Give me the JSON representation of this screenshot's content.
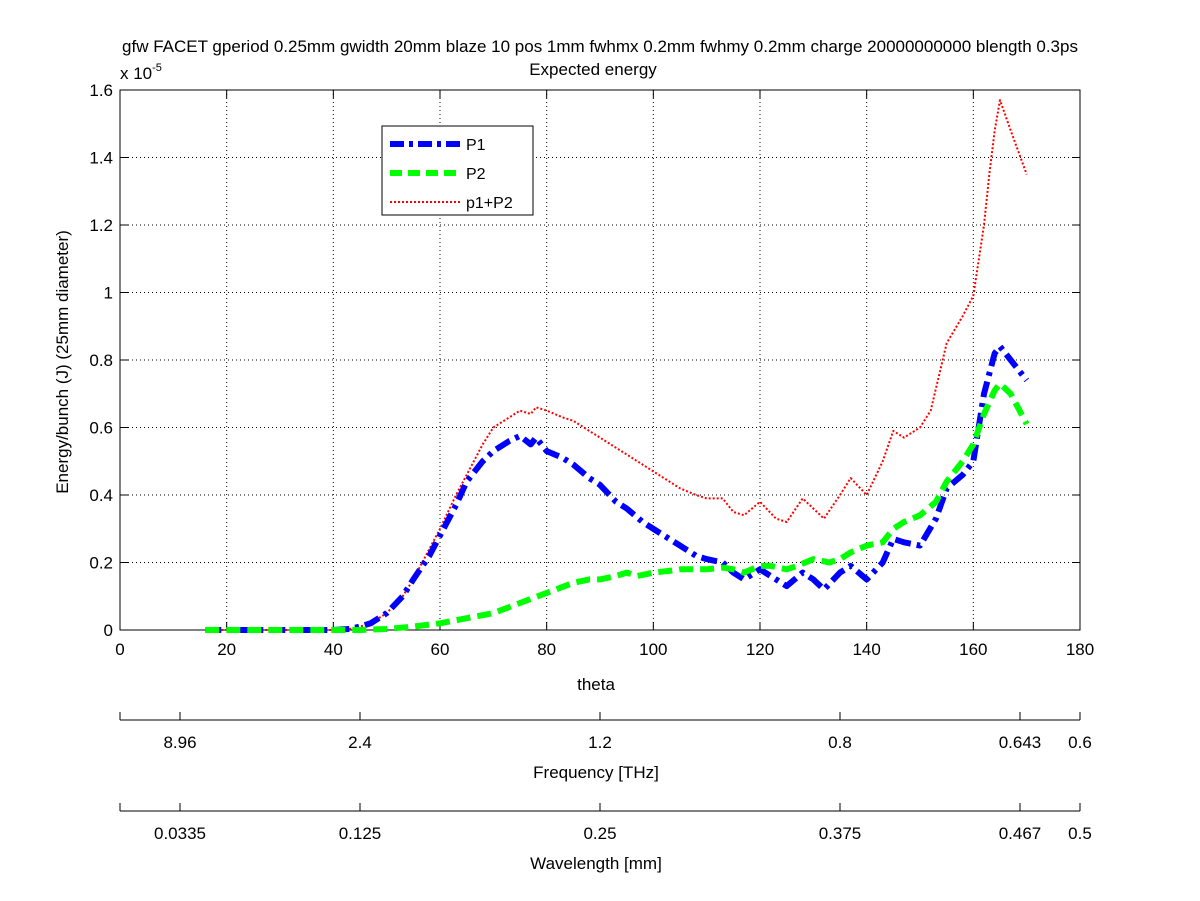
{
  "chart_data": {
    "type": "line",
    "title": "gfw FACET gperiod 0.25mm gwidth 20mm blaze 10 pos 1mm fwhmx 0.2mm fwhmy 0.2mm charge 20000000000 blength 0.3ps",
    "subtitle": "Expected energy",
    "xlabel": "theta",
    "ylabel": "Energy/bunch (J) (25mm diameter)",
    "y_multiplier_base": "x 10",
    "y_multiplier_exp": "-5",
    "xlim": [
      0,
      180
    ],
    "ylim": [
      0,
      1.6
    ],
    "x_ticks": [
      0,
      20,
      40,
      60,
      80,
      100,
      120,
      140,
      160,
      180
    ],
    "x_tick_labels": [
      "0",
      "20",
      "40",
      "60",
      "80",
      "100",
      "120",
      "140",
      "160",
      "180"
    ],
    "y_ticks": [
      0,
      0.2,
      0.4,
      0.6,
      0.8,
      1.0,
      1.2,
      1.4,
      1.6
    ],
    "y_tick_labels": [
      "0",
      "0.2",
      "0.4",
      "0.6",
      "0.8",
      "1",
      "1.2",
      "1.4",
      "1.6"
    ],
    "grid": true,
    "legend_position": "top-left",
    "secondary_axes": [
      {
        "label": "Frequency [THz]",
        "tick_positions": [
          0,
          11.25,
          45,
          90,
          135,
          168.75,
          180
        ],
        "tick_labels": [
          "",
          "8.96",
          "2.4",
          "1.2",
          "0.8",
          "0.643",
          "0.6"
        ]
      },
      {
        "label": "Wavelength [mm]",
        "tick_positions": [
          0,
          11.25,
          45,
          90,
          135,
          168.75,
          180
        ],
        "tick_labels": [
          "",
          "0.0335",
          "0.125",
          "0.25",
          "0.375",
          "0.467",
          "0.5"
        ]
      }
    ],
    "series": [
      {
        "name": "P1",
        "color": "#0000ff",
        "style": "dashdot",
        "x": [
          16,
          20,
          25,
          30,
          35,
          40,
          43,
          45,
          47,
          50,
          53,
          55,
          58,
          60,
          63,
          65,
          68,
          70,
          73,
          75,
          77,
          78,
          80,
          83,
          85,
          88,
          90,
          93,
          95,
          98,
          100,
          103,
          105,
          108,
          110,
          113,
          115,
          117,
          120,
          123,
          125,
          128,
          130,
          132,
          135,
          137,
          140,
          143,
          145,
          147,
          150,
          153,
          155,
          158,
          160,
          162,
          164,
          165,
          167,
          170
        ],
        "y": [
          0,
          0,
          0,
          0,
          0,
          0,
          0.003,
          0.01,
          0.02,
          0.05,
          0.1,
          0.15,
          0.22,
          0.28,
          0.37,
          0.44,
          0.5,
          0.53,
          0.56,
          0.575,
          0.55,
          0.57,
          0.53,
          0.51,
          0.49,
          0.45,
          0.43,
          0.38,
          0.36,
          0.32,
          0.3,
          0.27,
          0.25,
          0.22,
          0.21,
          0.2,
          0.17,
          0.15,
          0.18,
          0.15,
          0.13,
          0.17,
          0.15,
          0.12,
          0.17,
          0.19,
          0.15,
          0.2,
          0.27,
          0.26,
          0.25,
          0.33,
          0.42,
          0.46,
          0.5,
          0.7,
          0.82,
          0.84,
          0.8,
          0.74
        ]
      },
      {
        "name": "P2",
        "color": "#00ff00",
        "style": "dashed",
        "x": [
          16,
          20,
          30,
          40,
          45,
          50,
          55,
          60,
          65,
          70,
          75,
          80,
          85,
          88,
          90,
          93,
          95,
          97,
          100,
          103,
          105,
          108,
          110,
          113,
          115,
          117,
          120,
          122,
          125,
          127,
          130,
          133,
          135,
          137,
          140,
          143,
          145,
          147,
          150,
          153,
          155,
          158,
          160,
          162,
          164,
          165,
          167,
          170
        ],
        "y": [
          0,
          0,
          0,
          0,
          0,
          0.003,
          0.01,
          0.02,
          0.035,
          0.05,
          0.08,
          0.11,
          0.14,
          0.15,
          0.15,
          0.16,
          0.17,
          0.16,
          0.17,
          0.175,
          0.18,
          0.18,
          0.18,
          0.185,
          0.18,
          0.17,
          0.19,
          0.19,
          0.18,
          0.19,
          0.21,
          0.2,
          0.21,
          0.23,
          0.25,
          0.26,
          0.3,
          0.32,
          0.34,
          0.38,
          0.44,
          0.5,
          0.55,
          0.64,
          0.71,
          0.73,
          0.7,
          0.61
        ]
      },
      {
        "name": "p1+P2",
        "color": "#ff0000",
        "style": "dotted",
        "x": [
          16,
          20,
          30,
          40,
          43,
          45,
          47,
          50,
          53,
          55,
          58,
          60,
          63,
          65,
          68,
          70,
          73,
          75,
          77,
          78,
          80,
          83,
          85,
          88,
          90,
          93,
          95,
          98,
          100,
          103,
          105,
          108,
          110,
          113,
          115,
          117,
          120,
          123,
          125,
          128,
          130,
          132,
          135,
          137,
          140,
          143,
          145,
          147,
          150,
          152,
          155,
          158,
          160,
          162,
          163,
          164,
          165,
          167,
          170
        ],
        "y": [
          0,
          0,
          0,
          0,
          0.003,
          0.01,
          0.02,
          0.05,
          0.1,
          0.15,
          0.24,
          0.3,
          0.4,
          0.46,
          0.55,
          0.6,
          0.63,
          0.65,
          0.64,
          0.66,
          0.65,
          0.63,
          0.62,
          0.59,
          0.57,
          0.54,
          0.52,
          0.49,
          0.47,
          0.44,
          0.42,
          0.4,
          0.39,
          0.39,
          0.35,
          0.34,
          0.38,
          0.33,
          0.32,
          0.39,
          0.36,
          0.33,
          0.4,
          0.45,
          0.4,
          0.5,
          0.59,
          0.57,
          0.6,
          0.65,
          0.85,
          0.93,
          0.99,
          1.2,
          1.35,
          1.48,
          1.57,
          1.48,
          1.35
        ]
      }
    ]
  }
}
